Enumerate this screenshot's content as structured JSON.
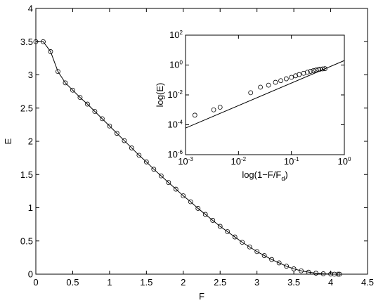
{
  "chart_data": [
    {
      "type": "line",
      "xlabel": "F",
      "ylabel": "E",
      "xlim": [
        0,
        4.5
      ],
      "ylim": [
        0,
        4
      ],
      "xticks": [
        0,
        0.5,
        1,
        1.5,
        2,
        2.5,
        3,
        3.5,
        4,
        4.5
      ],
      "yticks": [
        0,
        0.5,
        1,
        1.5,
        2,
        2.5,
        3,
        3.5,
        4
      ],
      "log": false,
      "grid": false,
      "series": [
        {
          "marker": "circle",
          "color": "#000000",
          "x": [
            0,
            0.1,
            0.2,
            0.3,
            0.4,
            0.5,
            0.6,
            0.7,
            0.8,
            0.9,
            1.0,
            1.1,
            1.2,
            1.3,
            1.4,
            1.5,
            1.6,
            1.7,
            1.8,
            1.9,
            2.0,
            2.1,
            2.2,
            2.3,
            2.4,
            2.5,
            2.6,
            2.7,
            2.8,
            2.9,
            3.0,
            3.1,
            3.2,
            3.3,
            3.4,
            3.5,
            3.6,
            3.7,
            3.8,
            3.9,
            4.0,
            4.05,
            4.1,
            4.12
          ],
          "values": [
            3.5,
            3.5,
            3.35,
            3.05,
            2.88,
            2.77,
            2.66,
            2.56,
            2.45,
            2.34,
            2.23,
            2.12,
            2.01,
            1.9,
            1.79,
            1.69,
            1.58,
            1.48,
            1.38,
            1.28,
            1.18,
            1.09,
            0.99,
            0.9,
            0.81,
            0.72,
            0.64,
            0.56,
            0.48,
            0.41,
            0.34,
            0.28,
            0.22,
            0.17,
            0.12,
            0.08,
            0.05,
            0.03,
            0.015,
            0.006,
            0.002,
            0,
            0,
            0
          ]
        }
      ]
    },
    {
      "type": "scatter",
      "xlabel": {
        "text": "log(1−F/F",
        "subscript": "d",
        "tail": ")"
      },
      "ylabel": "log(E)",
      "xlim": [
        0.001,
        1
      ],
      "ylim": [
        1e-06,
        100
      ],
      "xticks": [
        {
          "value": 0.001,
          "label": "10",
          "exponent": "-3"
        },
        {
          "value": 0.01,
          "label": "10",
          "exponent": "-2"
        },
        {
          "value": 0.1,
          "label": "10",
          "exponent": "-1"
        },
        {
          "value": 1,
          "label": "10",
          "exponent": "0"
        }
      ],
      "yticks": [
        {
          "value": 1e-06,
          "label": "10",
          "exponent": "-6"
        },
        {
          "value": 0.0001,
          "label": "10",
          "exponent": "-4"
        },
        {
          "value": 0.01,
          "label": "10",
          "exponent": "-2"
        },
        {
          "value": 1,
          "label": "10",
          "exponent": "0"
        },
        {
          "value": 100,
          "label": "10",
          "exponent": "2"
        }
      ],
      "log": true,
      "grid": false,
      "series": [
        {
          "marker": "circle",
          "color": "#000000",
          "x": [
            0.0015,
            0.0034,
            0.0045,
            0.017,
            0.026,
            0.037,
            0.05,
            0.063,
            0.08,
            0.1,
            0.12,
            0.14,
            0.17,
            0.2,
            0.23,
            0.26,
            0.29,
            0.32,
            0.35,
            0.39,
            0.43
          ],
          "values": [
            0.00044,
            0.001,
            0.0015,
            0.014,
            0.033,
            0.045,
            0.07,
            0.09,
            0.12,
            0.15,
            0.19,
            0.23,
            0.28,
            0.33,
            0.38,
            0.42,
            0.46,
            0.5,
            0.53,
            0.55,
            0.57
          ]
        },
        {
          "marker": "none",
          "color": "#000000",
          "x": [
            0.001,
            1
          ],
          "values": [
            6e-05,
            2
          ]
        }
      ]
    }
  ]
}
